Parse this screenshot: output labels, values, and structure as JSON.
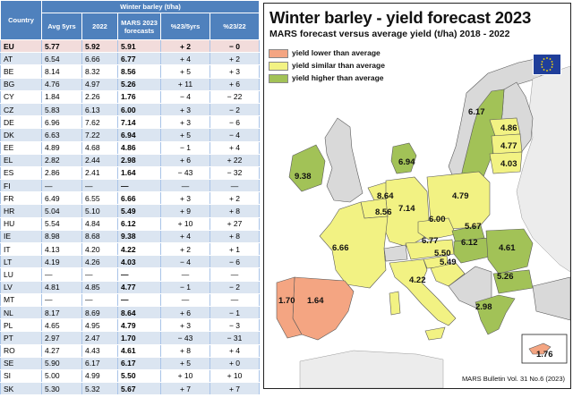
{
  "table": {
    "header_group": "Winter barley (t/ha)",
    "country_header": "Country",
    "columns": [
      "Avg 5yrs",
      "2022",
      "MARS 2023 forecasts",
      "%23/5yrs",
      "%23/22"
    ],
    "rows": [
      {
        "country": "EU",
        "avg": "5.77",
        "y2022": "5.92",
        "mars": "5.91",
        "p5": "+ 2",
        "p22": "− 0"
      },
      {
        "country": "AT",
        "avg": "6.54",
        "y2022": "6.66",
        "mars": "6.77",
        "p5": "+ 4",
        "p22": "+ 2"
      },
      {
        "country": "BE",
        "avg": "8.14",
        "y2022": "8.32",
        "mars": "8.56",
        "p5": "+ 5",
        "p22": "+ 3"
      },
      {
        "country": "BG",
        "avg": "4.76",
        "y2022": "4.97",
        "mars": "5.26",
        "p5": "+ 11",
        "p22": "+ 6"
      },
      {
        "country": "CY",
        "avg": "1.84",
        "y2022": "2.26",
        "mars": "1.76",
        "p5": "− 4",
        "p22": "− 22"
      },
      {
        "country": "CZ",
        "avg": "5.83",
        "y2022": "6.13",
        "mars": "6.00",
        "p5": "+ 3",
        "p22": "− 2"
      },
      {
        "country": "DE",
        "avg": "6.96",
        "y2022": "7.62",
        "mars": "7.14",
        "p5": "+ 3",
        "p22": "− 6"
      },
      {
        "country": "DK",
        "avg": "6.63",
        "y2022": "7.22",
        "mars": "6.94",
        "p5": "+ 5",
        "p22": "− 4"
      },
      {
        "country": "EE",
        "avg": "4.89",
        "y2022": "4.68",
        "mars": "4.86",
        "p5": "− 1",
        "p22": "+ 4"
      },
      {
        "country": "EL",
        "avg": "2.82",
        "y2022": "2.44",
        "mars": "2.98",
        "p5": "+ 6",
        "p22": "+ 22"
      },
      {
        "country": "ES",
        "avg": "2.86",
        "y2022": "2.41",
        "mars": "1.64",
        "p5": "− 43",
        "p22": "− 32"
      },
      {
        "country": "FI",
        "avg": "—",
        "y2022": "—",
        "mars": "—",
        "p5": "—",
        "p22": "—"
      },
      {
        "country": "FR",
        "avg": "6.49",
        "y2022": "6.55",
        "mars": "6.66",
        "p5": "+ 3",
        "p22": "+ 2"
      },
      {
        "country": "HR",
        "avg": "5.04",
        "y2022": "5.10",
        "mars": "5.49",
        "p5": "+ 9",
        "p22": "+ 8"
      },
      {
        "country": "HU",
        "avg": "5.54",
        "y2022": "4.84",
        "mars": "6.12",
        "p5": "+ 10",
        "p22": "+ 27"
      },
      {
        "country": "IE",
        "avg": "8.98",
        "y2022": "8.68",
        "mars": "9.38",
        "p5": "+ 4",
        "p22": "+ 8"
      },
      {
        "country": "IT",
        "avg": "4.13",
        "y2022": "4.20",
        "mars": "4.22",
        "p5": "+ 2",
        "p22": "+ 1"
      },
      {
        "country": "LT",
        "avg": "4.19",
        "y2022": "4.26",
        "mars": "4.03",
        "p5": "− 4",
        "p22": "− 6"
      },
      {
        "country": "LU",
        "avg": "—",
        "y2022": "—",
        "mars": "—",
        "p5": "—",
        "p22": "—"
      },
      {
        "country": "LV",
        "avg": "4.81",
        "y2022": "4.85",
        "mars": "4.77",
        "p5": "− 1",
        "p22": "− 2"
      },
      {
        "country": "MT",
        "avg": "—",
        "y2022": "—",
        "mars": "—",
        "p5": "—",
        "p22": "—"
      },
      {
        "country": "NL",
        "avg": "8.17",
        "y2022": "8.69",
        "mars": "8.64",
        "p5": "+ 6",
        "p22": "− 1"
      },
      {
        "country": "PL",
        "avg": "4.65",
        "y2022": "4.95",
        "mars": "4.79",
        "p5": "+ 3",
        "p22": "− 3"
      },
      {
        "country": "PT",
        "avg": "2.97",
        "y2022": "2.47",
        "mars": "1.70",
        "p5": "− 43",
        "p22": "− 31"
      },
      {
        "country": "RO",
        "avg": "4.27",
        "y2022": "4.43",
        "mars": "4.61",
        "p5": "+ 8",
        "p22": "+ 4"
      },
      {
        "country": "SE",
        "avg": "5.90",
        "y2022": "6.17",
        "mars": "6.17",
        "p5": "+ 5",
        "p22": "+ 0"
      },
      {
        "country": "SI",
        "avg": "5.00",
        "y2022": "4.99",
        "mars": "5.50",
        "p5": "+ 10",
        "p22": "+ 10"
      },
      {
        "country": "SK",
        "avg": "5.30",
        "y2022": "5.32",
        "mars": "5.67",
        "p5": "+ 7",
        "p22": "+ 7"
      }
    ]
  },
  "map": {
    "title": "Winter barley - yield forecast 2023",
    "subtitle": "MARS forecast versus average yield (t/ha) 2018 - 2022",
    "legend": [
      {
        "label": "yield lower than average",
        "color": "#f4a582"
      },
      {
        "label": "yield similar than average",
        "color": "#f2f283"
      },
      {
        "label": "yield higher than average",
        "color": "#a2c257"
      }
    ],
    "colors": {
      "lower": "#f4a582",
      "similar": "#f2f283",
      "higher": "#a2c257",
      "nodata": "#d9d9d9",
      "sea": "#ffffff",
      "border": "#5b5b5b"
    },
    "labels": {
      "SE": "6.17",
      "EE": "4.86",
      "LV": "4.77",
      "LT": "4.03",
      "IE": "9.38",
      "DK": "6.94",
      "NL": "8.64",
      "BE": "8.56",
      "DE": "7.14",
      "PL": "4.79",
      "CZ": "6.00",
      "SK": "5.67",
      "AT": "6.77",
      "HU": "6.12",
      "SI": "5.50",
      "HR": "5.49",
      "RO": "4.61",
      "FR": "6.66",
      "IT": "4.22",
      "BG": "5.26",
      "EL": "2.98",
      "PT": "1.70",
      "ES": "1.64",
      "CY": "1.76"
    },
    "footer": "MARS Bulletin Vol. 31 No.6 (2023)",
    "flag_icon": "eu-flag-icon"
  }
}
